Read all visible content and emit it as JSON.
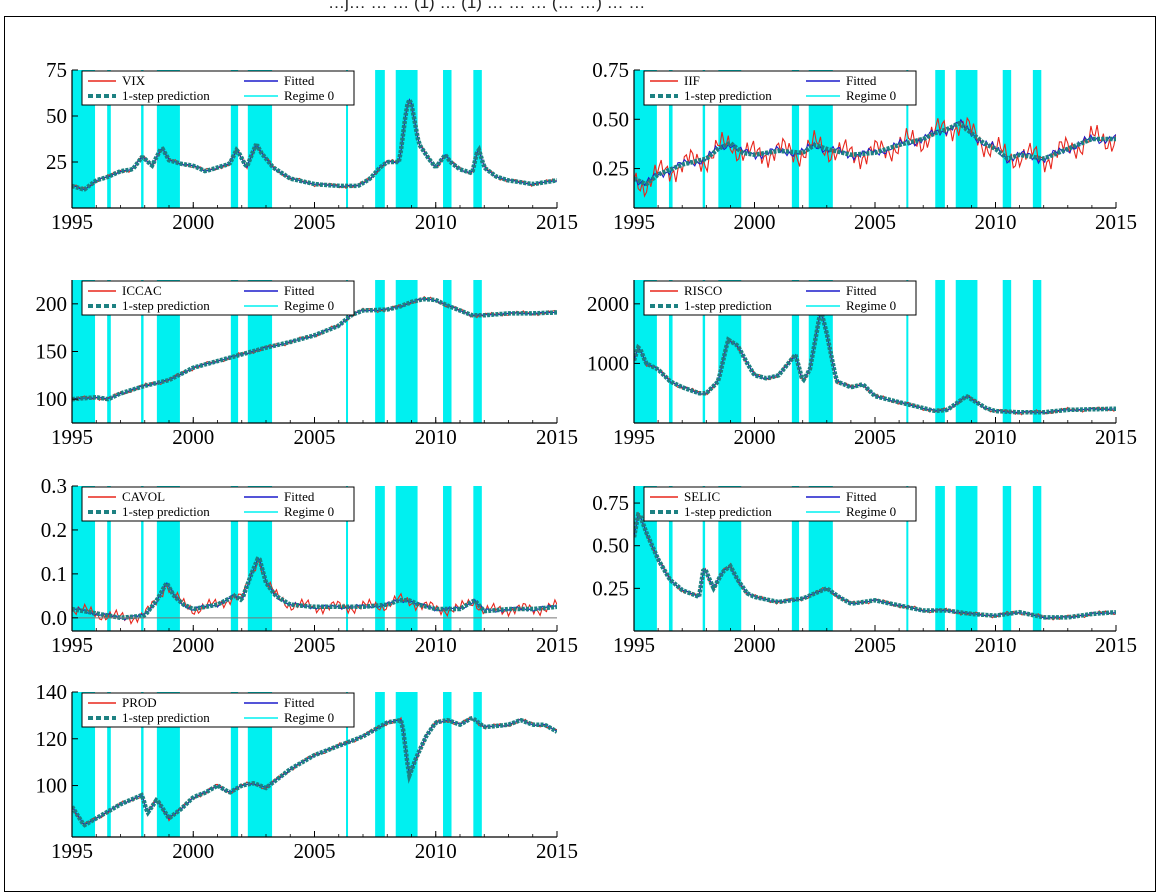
{
  "caption": "…j… … … (1) … (1) … … … (… …) … …",
  "legend_labels": {
    "fitted": "Fitted",
    "prediction": "1-step prediction",
    "regime": "Regime 0"
  },
  "colors": {
    "actual": "#e8261c",
    "fitted": "#1c1ccc",
    "prediction": "#1d8182",
    "regime": "#00f0f0",
    "axis": "#000000"
  },
  "regime_periods": [
    [
      1995.0,
      1995.95
    ],
    [
      1996.45,
      1996.6
    ],
    [
      1997.85,
      1997.95
    ],
    [
      1998.5,
      1999.45
    ],
    [
      2001.55,
      2001.85
    ],
    [
      2002.25,
      2003.25
    ],
    [
      2006.3,
      2006.38
    ],
    [
      2007.5,
      2007.9
    ],
    [
      2008.35,
      2009.25
    ],
    [
      2010.3,
      2010.65
    ],
    [
      2011.55,
      2011.9
    ]
  ],
  "chart_data": [
    {
      "type": "line",
      "series_name": "VIX",
      "xlim": [
        1995,
        2015
      ],
      "ylim": [
        0,
        75
      ],
      "xticks": [
        "1995",
        "2000",
        "2005",
        "2010",
        "2015"
      ],
      "yticks": [
        "25",
        "50",
        "75"
      ],
      "ytick_values": [
        25,
        50,
        75
      ],
      "x": [
        1995.0,
        1995.5,
        1996.0,
        1996.5,
        1997.0,
        1997.5,
        1997.9,
        1998.3,
        1998.7,
        1999.0,
        1999.5,
        2000.0,
        2000.5,
        2001.0,
        2001.5,
        2001.8,
        2002.2,
        2002.6,
        2002.8,
        2003.3,
        2004.0,
        2005.0,
        2006.0,
        2006.8,
        2007.3,
        2007.7,
        2008.0,
        2008.5,
        2008.8,
        2008.95,
        2009.3,
        2009.7,
        2010.0,
        2010.4,
        2010.6,
        2011.0,
        2011.5,
        2011.75,
        2012.0,
        2012.5,
        2013.0,
        2014.0,
        2014.5,
        2015.0
      ],
      "values": [
        12,
        10,
        15,
        17,
        20,
        21,
        28,
        23,
        33,
        26,
        24,
        23,
        20,
        22,
        24,
        32,
        22,
        35,
        30,
        22,
        16,
        13,
        12,
        12,
        16,
        22,
        25,
        25,
        55,
        60,
        35,
        27,
        22,
        29,
        25,
        21,
        19,
        33,
        22,
        17,
        15,
        13,
        14,
        15
      ]
    },
    {
      "type": "line",
      "series_name": "IIF",
      "xlim": [
        1995,
        2015
      ],
      "ylim": [
        0.05,
        0.75
      ],
      "xticks": [
        "1995",
        "2000",
        "2005",
        "2010",
        "2015"
      ],
      "yticks": [
        "0.25",
        "0.50",
        "0.75"
      ],
      "ytick_values": [
        0.25,
        0.5,
        0.75
      ],
      "x": [
        1995.0,
        1995.5,
        1996.0,
        1997.0,
        1998.0,
        1998.5,
        1999.0,
        1999.5,
        2000.0,
        2001.0,
        2002.0,
        2002.5,
        2003.0,
        2004.0,
        2005.0,
        2006.0,
        2007.0,
        2007.5,
        2008.0,
        2008.5,
        2009.0,
        2009.5,
        2010.0,
        2010.5,
        2011.0,
        2012.0,
        2013.0,
        2014.0,
        2015.0
      ],
      "values": [
        0.2,
        0.17,
        0.22,
        0.27,
        0.3,
        0.35,
        0.38,
        0.33,
        0.32,
        0.34,
        0.33,
        0.37,
        0.35,
        0.32,
        0.33,
        0.37,
        0.4,
        0.43,
        0.45,
        0.48,
        0.43,
        0.38,
        0.35,
        0.3,
        0.32,
        0.3,
        0.35,
        0.4,
        0.4
      ]
    },
    {
      "type": "line",
      "series_name": "ICCAC",
      "xlim": [
        1995,
        2015
      ],
      "ylim": [
        75,
        225
      ],
      "xticks": [
        "1995",
        "2000",
        "2005",
        "2010",
        "2015"
      ],
      "yticks": [
        "100",
        "150",
        "200"
      ],
      "ytick_values": [
        100,
        150,
        200
      ],
      "x": [
        1995.0,
        1996.0,
        1996.5,
        1997.0,
        1998.0,
        1999.0,
        2000.0,
        2001.0,
        2002.0,
        2003.0,
        2004.0,
        2005.0,
        2006.0,
        2006.5,
        2007.0,
        2008.0,
        2008.5,
        2009.0,
        2009.5,
        2010.0,
        2010.5,
        2011.0,
        2011.5,
        2012.0,
        2013.0,
        2014.0,
        2015.0
      ],
      "values": [
        100,
        102,
        100,
        106,
        114,
        120,
        133,
        140,
        147,
        154,
        160,
        167,
        177,
        188,
        193,
        194,
        197,
        202,
        205,
        204,
        198,
        193,
        188,
        188,
        190,
        190,
        191
      ]
    },
    {
      "type": "line",
      "series_name": "RISCO",
      "xlim": [
        1995,
        2015
      ],
      "ylim": [
        0,
        2400
      ],
      "xticks": [
        "1995",
        "2000",
        "2005",
        "2010",
        "2015"
      ],
      "yticks": [
        "1000",
        "2000"
      ],
      "ytick_values": [
        1000,
        2000
      ],
      "x": [
        1995.0,
        1995.2,
        1995.5,
        1996.0,
        1996.5,
        1997.0,
        1997.7,
        1998.0,
        1998.5,
        1998.9,
        1999.3,
        1999.7,
        2000.0,
        2000.5,
        2001.0,
        2001.7,
        2002.0,
        2002.3,
        2002.75,
        2003.0,
        2003.4,
        2004.0,
        2004.5,
        2005.0,
        2006.0,
        2007.0,
        2007.5,
        2008.0,
        2008.8,
        2009.2,
        2009.6,
        2010.0,
        2011.0,
        2012.0,
        2013.0,
        2014.0,
        2015.0
      ],
      "values": [
        1050,
        1300,
        1000,
        900,
        700,
        600,
        500,
        500,
        700,
        1400,
        1300,
        1000,
        800,
        750,
        800,
        1150,
        700,
        900,
        1900,
        1500,
        700,
        600,
        650,
        450,
        350,
        250,
        200,
        220,
        450,
        350,
        250,
        200,
        180,
        180,
        220,
        230,
        240
      ]
    },
    {
      "type": "line",
      "series_name": "CAVOL",
      "xlim": [
        1995,
        2015
      ],
      "ylim": [
        -0.03,
        0.3
      ],
      "xticks": [
        "1995",
        "2000",
        "2005",
        "2010",
        "2015"
      ],
      "yticks": [
        "0.0",
        "0.1",
        "0.2",
        "0.3"
      ],
      "ytick_values": [
        0.0,
        0.1,
        0.2,
        0.3
      ],
      "x": [
        1995.0,
        1996.0,
        1997.0,
        1998.0,
        1998.5,
        1998.9,
        1999.2,
        1999.6,
        2000.0,
        2001.0,
        2001.7,
        2002.0,
        2002.4,
        2002.7,
        2003.0,
        2003.4,
        2004.0,
        2005.0,
        2006.0,
        2007.0,
        2008.0,
        2008.5,
        2008.9,
        2009.3,
        2010.0,
        2011.0,
        2011.6,
        2012.0,
        2013.0,
        2014.0,
        2015.0
      ],
      "values": [
        0.02,
        0.01,
        0.0,
        0.005,
        0.04,
        0.08,
        0.05,
        0.03,
        0.02,
        0.03,
        0.05,
        0.04,
        0.1,
        0.14,
        0.08,
        0.05,
        0.03,
        0.025,
        0.025,
        0.025,
        0.03,
        0.04,
        0.04,
        0.03,
        0.02,
        0.02,
        0.04,
        0.015,
        0.02,
        0.02,
        0.025
      ]
    },
    {
      "type": "line",
      "series_name": "SELIC",
      "xlim": [
        1995,
        2015
      ],
      "ylim": [
        0.0,
        0.85
      ],
      "xticks": [
        "1995",
        "2000",
        "2005",
        "2010",
        "2015"
      ],
      "yticks": [
        "0.25",
        "0.50",
        "0.75"
      ],
      "ytick_values": [
        0.25,
        0.5,
        0.75
      ],
      "x": [
        1995.0,
        1995.2,
        1995.5,
        1996.0,
        1996.5,
        1997.0,
        1997.7,
        1997.9,
        1998.3,
        1998.7,
        1999.0,
        1999.3,
        1999.7,
        2000.0,
        2001.0,
        2002.0,
        2003.0,
        2003.5,
        2004.0,
        2005.0,
        2006.0,
        2007.0,
        2008.0,
        2009.0,
        2010.0,
        2011.0,
        2012.0,
        2013.0,
        2014.0,
        2015.0
      ],
      "values": [
        0.55,
        0.7,
        0.58,
        0.42,
        0.3,
        0.24,
        0.2,
        0.38,
        0.25,
        0.35,
        0.38,
        0.3,
        0.22,
        0.2,
        0.17,
        0.19,
        0.25,
        0.2,
        0.16,
        0.18,
        0.15,
        0.12,
        0.12,
        0.1,
        0.09,
        0.11,
        0.08,
        0.08,
        0.1,
        0.11
      ]
    },
    {
      "type": "line",
      "series_name": "PROD",
      "xlim": [
        1995,
        2015
      ],
      "ylim": [
        78,
        140
      ],
      "xticks": [
        "1995",
        "2000",
        "2005",
        "2010",
        "2015"
      ],
      "yticks": [
        "100",
        "120",
        "140"
      ],
      "ytick_values": [
        100,
        120,
        140
      ],
      "x": [
        1995.0,
        1995.5,
        1996.0,
        1996.5,
        1997.0,
        1997.9,
        1998.1,
        1998.5,
        1999.0,
        1999.5,
        2000.0,
        2000.5,
        2001.0,
        2001.5,
        2002.0,
        2002.5,
        2003.0,
        2003.5,
        2004.0,
        2005.0,
        2006.0,
        2007.0,
        2008.0,
        2008.6,
        2008.9,
        2009.2,
        2009.6,
        2010.0,
        2010.5,
        2011.0,
        2011.5,
        2012.0,
        2013.0,
        2013.5,
        2014.0,
        2014.5,
        2015.0
      ],
      "values": [
        91,
        83,
        86,
        89,
        92,
        96,
        88,
        94,
        86,
        90,
        95,
        97,
        100,
        97,
        100,
        101,
        99,
        103,
        107,
        113,
        117,
        121,
        127,
        128,
        104,
        112,
        121,
        127,
        128,
        126,
        129,
        125,
        126,
        128,
        126,
        126,
        123
      ]
    }
  ]
}
